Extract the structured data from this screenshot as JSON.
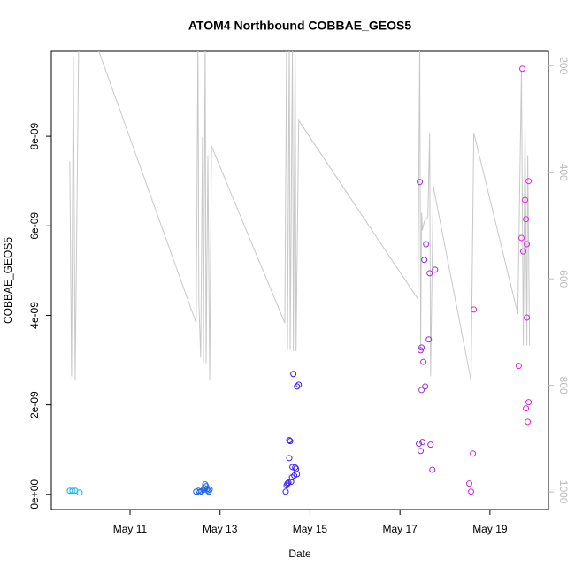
{
  "chart_data": {
    "type": "scatter",
    "title": "ATOM4 Northbound COBBAE_GEOS5",
    "x_label": "Date",
    "y_label": "COBBAE_GEOS5",
    "xlim": [
      9.25,
      20.3
    ],
    "xticks": [
      {
        "value": 11,
        "label": "May 11"
      },
      {
        "value": 13,
        "label": "May 13"
      },
      {
        "value": 15,
        "label": "May 15"
      },
      {
        "value": 17,
        "label": "May 17"
      },
      {
        "value": 19,
        "label": "May 19"
      }
    ],
    "ylim": [
      -3.4e-10,
      9.9e-09
    ],
    "yticks": [
      {
        "value": 0,
        "label": "0e+00"
      },
      {
        "value": 2e-09,
        "label": "2e-09"
      },
      {
        "value": 4e-09,
        "label": "4e-09"
      },
      {
        "value": 6e-09,
        "label": "6e-09"
      },
      {
        "value": 8e-09,
        "label": "8e-09"
      }
    ],
    "y2lim": [
      1033,
      173
    ],
    "y2ticks": [
      200,
      400,
      600,
      800,
      1000
    ],
    "grid": false,
    "series": [
      {
        "type": "line",
        "axis": "y2",
        "color": "#c8c8c8",
        "x": [
          9.66,
          9.7,
          9.74,
          9.78,
          9.86,
          10.21,
          12.47,
          12.51,
          12.53,
          12.57,
          12.61,
          12.63,
          12.67,
          12.69,
          12.73,
          12.77,
          12.81,
          14.44,
          14.48,
          14.5,
          14.54,
          14.56,
          14.61,
          14.63,
          14.67,
          14.69,
          14.75,
          17.4,
          17.44,
          17.46,
          17.48,
          17.5,
          17.54,
          17.62,
          17.66,
          17.68,
          17.74,
          18.58,
          18.64,
          19.62,
          19.7,
          19.74,
          19.78,
          19.82,
          19.84,
          19.88
        ],
        "values": [
          379,
          783,
          183,
          791,
          150,
          150,
          683,
          150,
          642,
          748,
          334,
          758,
          150,
          758,
          368,
          791,
          351,
          683,
          150,
          733,
          150,
          733,
          150,
          736,
          150,
          736,
          303,
          638,
          150,
          733,
          476,
          509,
          492,
          484,
          326,
          783,
          426,
          791,
          326,
          666,
          210,
          725,
          310,
          725,
          368,
          725
        ]
      },
      {
        "color": "#10b0f0",
        "x": [
          9.66,
          9.72,
          9.78,
          9.88
        ],
        "values": [
          8e-11,
          8e-11,
          8e-11,
          4e-11
        ]
      },
      {
        "color": "#1e63e8",
        "x": [
          12.47,
          12.52,
          12.55,
          12.59,
          12.63,
          12.65,
          12.67,
          12.69,
          12.71,
          12.73,
          12.75,
          12.77
        ],
        "values": [
          6e-11,
          8e-11,
          5e-11,
          7e-11,
          1e-10,
          1.4e-10,
          2.2e-10,
          1.8e-10,
          1.2e-10,
          9e-11,
          6e-11,
          1.1e-10
        ]
      },
      {
        "color": "#3a1fe8",
        "x": [
          14.46,
          14.48,
          14.5,
          14.52,
          14.54,
          14.54,
          14.56,
          14.58,
          14.6,
          14.61,
          14.63,
          14.65,
          14.67,
          14.69,
          14.71,
          14.71,
          14.75
        ],
        "values": [
          6e-11,
          2e-10,
          2.4e-10,
          2.6e-10,
          8.1e-10,
          1.21e-09,
          1.19e-09,
          2.8e-10,
          3.8e-10,
          6.1e-10,
          2.69e-09,
          4.2e-10,
          6e-10,
          5.7e-10,
          2.41e-09,
          4.5e-10,
          2.45e-09
        ]
      },
      {
        "color": "#9a2fe0",
        "x": [
          17.42,
          17.44,
          17.46,
          17.46,
          17.48,
          17.48,
          17.5,
          17.52,
          17.54,
          17.56,
          17.58,
          17.64,
          17.66,
          17.68,
          17.72,
          17.78
        ],
        "values": [
          1.13e-09,
          6.98e-09,
          9.7e-10,
          3.22e-09,
          3.28e-09,
          2.33e-09,
          1.17e-09,
          2.96e-09,
          5.24e-09,
          2.41e-09,
          5.59e-09,
          3.46e-09,
          4.94e-09,
          1.11e-09,
          5.5e-10,
          5.02e-09
        ]
      },
      {
        "color": "#cc2ad8",
        "x": [
          18.54,
          18.58,
          18.62,
          18.64
        ],
        "values": [
          2.4e-10,
          6e-11,
          9.1e-10,
          4.13e-09
        ]
      },
      {
        "color": "#e81ee0",
        "x": [
          19.64,
          19.7,
          19.72,
          19.74,
          19.78,
          19.8,
          19.8,
          19.82,
          19.82,
          19.84,
          19.86,
          19.86
        ],
        "values": [
          2.87e-09,
          5.73e-09,
          9.51e-09,
          5.43e-09,
          6.58e-09,
          6.15e-09,
          1.92e-09,
          5.59e-09,
          3.95e-09,
          1.62e-09,
          7e-09,
          2.06e-09
        ]
      }
    ]
  }
}
